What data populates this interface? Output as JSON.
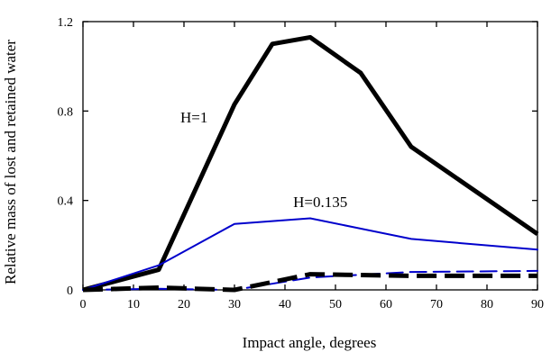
{
  "chart_data": {
    "type": "line",
    "title": "",
    "xlabel": "Impact angle, degrees",
    "ylabel": "Relative mass of lost and retained water",
    "xlim": [
      0,
      90
    ],
    "ylim": [
      0,
      1.2
    ],
    "x_ticks": [
      0,
      10,
      20,
      30,
      40,
      50,
      60,
      70,
      80,
      90
    ],
    "x_tick_labels": [
      "0",
      "10",
      "20",
      "30",
      "40",
      "50",
      "60",
      "70",
      "80",
      "90"
    ],
    "y_ticks": [
      0,
      0.4,
      0.8,
      1.2
    ],
    "y_tick_labels": [
      "0",
      "0.4",
      "0.8",
      "1.2"
    ],
    "grid": false,
    "legend": "none",
    "annotations": [
      {
        "text": "H=1",
        "x": 22,
        "y": 0.75
      },
      {
        "text": "H=0.135",
        "x": 47,
        "y": 0.37
      }
    ],
    "series": [
      {
        "color": "#000000",
        "style": "solid",
        "weight": "thick",
        "x": [
          0,
          15,
          30,
          37.5,
          45,
          55,
          65,
          90
        ],
        "y": [
          0,
          0.09,
          0.83,
          1.1,
          1.13,
          0.97,
          0.64,
          0.25
        ]
      },
      {
        "color": "#0000cc",
        "style": "solid",
        "weight": "thin",
        "x": [
          0,
          15,
          30,
          45,
          65,
          90
        ],
        "y": [
          0,
          0.11,
          0.295,
          0.32,
          0.228,
          0.18
        ]
      },
      {
        "color": "#0000cc",
        "style": "dashed",
        "weight": "thin",
        "x": [
          0,
          15,
          30,
          45,
          65,
          90
        ],
        "y": [
          0,
          0.005,
          0.0,
          0.055,
          0.08,
          0.085
        ]
      },
      {
        "color": "#000000",
        "style": "dashed",
        "weight": "thick",
        "x": [
          0,
          15,
          30,
          45,
          65,
          90
        ],
        "y": [
          0,
          0.01,
          0.0,
          0.07,
          0.063,
          0.063
        ]
      }
    ]
  }
}
